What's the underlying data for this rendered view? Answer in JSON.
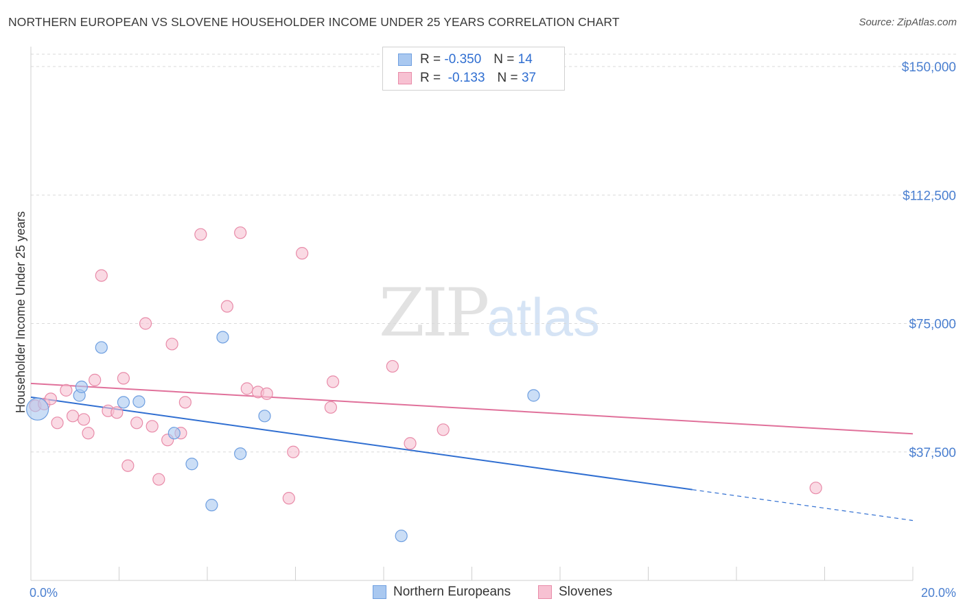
{
  "title": "NORTHERN EUROPEAN VS SLOVENE HOUSEHOLDER INCOME UNDER 25 YEARS CORRELATION CHART",
  "source": "Source: ZipAtlas.com",
  "watermark": {
    "zip": "ZIP",
    "atlas": "atlas"
  },
  "legend": {
    "rows": [
      {
        "r_label": "R =",
        "r_value": "-0.350",
        "n_label": "N =",
        "n_value": "14",
        "color": "#a9c8f0",
        "stroke": "#6d9ee0"
      },
      {
        "r_label": "R =",
        "r_value": "-0.133",
        "n_label": "N =",
        "n_value": "37",
        "color": "#f7c1d2",
        "stroke": "#e88aa8"
      }
    ]
  },
  "bottom_legend": [
    {
      "label": "Northern Europeans",
      "color": "#a9c8f0",
      "stroke": "#6d9ee0"
    },
    {
      "label": "Slovenes",
      "color": "#f7c1d2",
      "stroke": "#e88aa8"
    }
  ],
  "chart_data": {
    "type": "scatter",
    "title": "NORTHERN EUROPEAN VS SLOVENE HOUSEHOLDER INCOME UNDER 25 YEARS CORRELATION CHART",
    "xlabel": "",
    "ylabel": "Householder Income Under 25 years",
    "xlim": [
      0,
      20
    ],
    "ylim": [
      0,
      155000
    ],
    "x_tick_labels": [
      "0.0%",
      "20.0%"
    ],
    "y_ticks": [
      37500,
      75000,
      112500,
      150000
    ],
    "y_tick_labels": [
      "$37,500",
      "$75,000",
      "$112,500",
      "$150,000"
    ],
    "grid": true,
    "series": [
      {
        "name": "Northern Europeans",
        "color": "#a9c8f0",
        "stroke": "#6d9ee0",
        "line_color": "#2f6ed1",
        "trend": {
          "x0": 0,
          "y0": 53500,
          "x1": 15,
          "y1": 26500,
          "dash_to": 20,
          "dash_y": 17500
        },
        "points": [
          {
            "x": 0.15,
            "y": 50000,
            "big": true
          },
          {
            "x": 1.1,
            "y": 54000
          },
          {
            "x": 1.15,
            "y": 56500
          },
          {
            "x": 1.6,
            "y": 68000
          },
          {
            "x": 2.1,
            "y": 52000
          },
          {
            "x": 2.45,
            "y": 52200
          },
          {
            "x": 3.25,
            "y": 43000
          },
          {
            "x": 3.65,
            "y": 34000
          },
          {
            "x": 4.1,
            "y": 22000
          },
          {
            "x": 4.35,
            "y": 71000
          },
          {
            "x": 4.75,
            "y": 37000
          },
          {
            "x": 5.3,
            "y": 48000
          },
          {
            "x": 8.4,
            "y": 13000
          },
          {
            "x": 11.4,
            "y": 54000
          }
        ]
      },
      {
        "name": "Slovenes",
        "color": "#f7c1d2",
        "stroke": "#e88aa8",
        "line_color": "#e0709a",
        "trend": {
          "x0": 0,
          "y0": 57500,
          "x1": 20,
          "y1": 42800
        },
        "points": [
          {
            "x": 0.1,
            "y": 51000
          },
          {
            "x": 0.3,
            "y": 51500
          },
          {
            "x": 0.45,
            "y": 53000
          },
          {
            "x": 0.6,
            "y": 46000
          },
          {
            "x": 0.8,
            "y": 55500
          },
          {
            "x": 0.95,
            "y": 48000
          },
          {
            "x": 1.2,
            "y": 47000
          },
          {
            "x": 1.3,
            "y": 43000
          },
          {
            "x": 1.45,
            "y": 58500
          },
          {
            "x": 1.6,
            "y": 89000
          },
          {
            "x": 1.75,
            "y": 49500
          },
          {
            "x": 1.95,
            "y": 49000
          },
          {
            "x": 2.1,
            "y": 59000
          },
          {
            "x": 2.2,
            "y": 33500
          },
          {
            "x": 2.4,
            "y": 46000
          },
          {
            "x": 2.6,
            "y": 75000
          },
          {
            "x": 2.75,
            "y": 45000
          },
          {
            "x": 2.9,
            "y": 29500
          },
          {
            "x": 3.1,
            "y": 41000
          },
          {
            "x": 3.2,
            "y": 69000
          },
          {
            "x": 3.4,
            "y": 43000
          },
          {
            "x": 3.5,
            "y": 52000
          },
          {
            "x": 3.85,
            "y": 101000
          },
          {
            "x": 4.45,
            "y": 80000
          },
          {
            "x": 4.75,
            "y": 101500
          },
          {
            "x": 4.9,
            "y": 56000
          },
          {
            "x": 5.15,
            "y": 55000
          },
          {
            "x": 5.35,
            "y": 54500
          },
          {
            "x": 5.85,
            "y": 24000
          },
          {
            "x": 5.95,
            "y": 37500
          },
          {
            "x": 6.15,
            "y": 95500
          },
          {
            "x": 6.8,
            "y": 50500
          },
          {
            "x": 6.85,
            "y": 58000
          },
          {
            "x": 8.2,
            "y": 62500
          },
          {
            "x": 8.6,
            "y": 40000
          },
          {
            "x": 9.35,
            "y": 44000
          },
          {
            "x": 17.8,
            "y": 27000
          }
        ]
      }
    ]
  }
}
